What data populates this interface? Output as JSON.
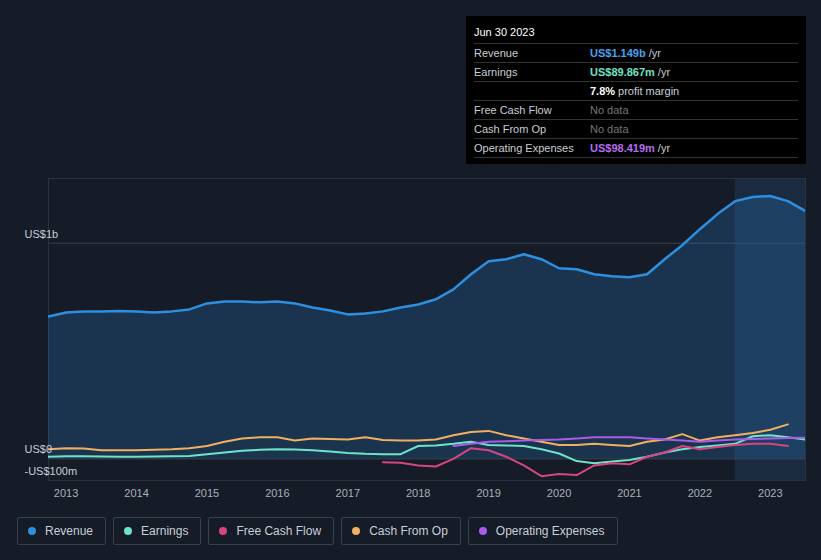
{
  "chart_data": {
    "type": "line",
    "x": [
      2012.75,
      2013,
      2013.25,
      2013.5,
      2013.75,
      2014,
      2014.25,
      2014.5,
      2014.75,
      2015,
      2015.25,
      2015.5,
      2015.75,
      2016,
      2016.25,
      2016.5,
      2016.75,
      2017,
      2017.25,
      2017.5,
      2017.75,
      2018,
      2018.25,
      2018.5,
      2018.75,
      2019,
      2019.25,
      2019.5,
      2019.75,
      2020,
      2020.25,
      2020.5,
      2020.75,
      2021,
      2021.25,
      2021.5,
      2021.75,
      2022,
      2022.25,
      2022.5,
      2022.75,
      2023,
      2023.25,
      2023.5
    ],
    "xlim": [
      2012.75,
      2023.5
    ],
    "xticks": [
      2013,
      2014,
      2015,
      2016,
      2017,
      2018,
      2019,
      2020,
      2021,
      2022,
      2023
    ],
    "ylim": [
      -100,
      1300
    ],
    "yticks": [
      {
        "value": -100,
        "label": "-US$100m"
      },
      {
        "value": 0,
        "label": "US$0"
      },
      {
        "value": 1000,
        "label": "US$1b"
      }
    ],
    "grid": true,
    "legend": "bottom",
    "highlight_x": [
      2022.5,
      2023.5
    ],
    "series": [
      {
        "name": "Revenue",
        "type": "area",
        "color": "#2d8fe0",
        "values": [
          660,
          679,
          684,
          684,
          686,
          684,
          679,
          684,
          693,
          721,
          730,
          730,
          726,
          730,
          721,
          702,
          688,
          670,
          674,
          684,
          702,
          716,
          740,
          786,
          856,
          916,
          926,
          949,
          926,
          884,
          879,
          856,
          847,
          842,
          856,
          926,
          991,
          1065,
          1135,
          1195,
          1214,
          1219,
          1195,
          1149
        ]
      },
      {
        "name": "Earnings",
        "type": "line",
        "color": "#6fe3c5",
        "values": [
          10,
          12,
          12,
          11,
          10,
          10,
          11,
          12,
          14,
          22,
          30,
          38,
          42,
          45,
          44,
          40,
          34,
          28,
          24,
          22,
          22,
          60,
          62,
          70,
          80,
          65,
          62,
          60,
          45,
          25,
          -10,
          -20,
          -12,
          -5,
          10,
          30,
          45,
          55,
          62,
          70,
          105,
          110,
          100,
          89.867
        ]
      },
      {
        "name": "Free Cash Flow",
        "type": "line",
        "color": "#d6457f",
        "values": [
          null,
          null,
          null,
          null,
          null,
          null,
          null,
          null,
          null,
          null,
          null,
          null,
          null,
          null,
          null,
          null,
          null,
          null,
          null,
          -15,
          -18,
          -30,
          -35,
          0,
          50,
          40,
          10,
          -30,
          -80,
          -70,
          -75,
          -30,
          -20,
          -25,
          10,
          30,
          60,
          45,
          55,
          65,
          70,
          70,
          60,
          null
        ]
      },
      {
        "name": "Cash From Op",
        "type": "line",
        "color": "#f0b060",
        "values": [
          45,
          50,
          48,
          40,
          40,
          40,
          42,
          45,
          50,
          60,
          80,
          95,
          100,
          100,
          85,
          95,
          92,
          90,
          100,
          88,
          85,
          85,
          90,
          110,
          125,
          130,
          110,
          95,
          80,
          65,
          65,
          70,
          65,
          60,
          80,
          90,
          115,
          85,
          100,
          110,
          120,
          135,
          160,
          null
        ]
      },
      {
        "name": "Operating Expenses",
        "type": "line",
        "color": "#a95ce8",
        "values": [
          null,
          null,
          null,
          null,
          null,
          null,
          null,
          null,
          null,
          null,
          null,
          null,
          null,
          null,
          null,
          null,
          null,
          null,
          null,
          null,
          null,
          null,
          null,
          60,
          70,
          80,
          82,
          85,
          88,
          90,
          95,
          100,
          100,
          100,
          95,
          90,
          85,
          80,
          85,
          90,
          92,
          95,
          97,
          98.419
        ]
      }
    ],
    "tooltip": {
      "title": "Jun 30 2023",
      "rows": [
        {
          "label": "Revenue",
          "value": "US$1.149b",
          "unit": "/yr",
          "color": "#4aa3ee"
        },
        {
          "label": "Earnings",
          "value": "US$89.867m",
          "unit": "/yr",
          "color": "#6fe3c5"
        },
        {
          "label": "",
          "value": "7.8%",
          "unit": "profit margin",
          "color": "#ffffff"
        },
        {
          "label": "Free Cash Flow",
          "value": "No data"
        },
        {
          "label": "Cash From Op",
          "value": "No data"
        },
        {
          "label": "Operating Expenses",
          "value": "US$98.419m",
          "unit": "/yr",
          "color": "#b56cf0"
        }
      ]
    }
  }
}
